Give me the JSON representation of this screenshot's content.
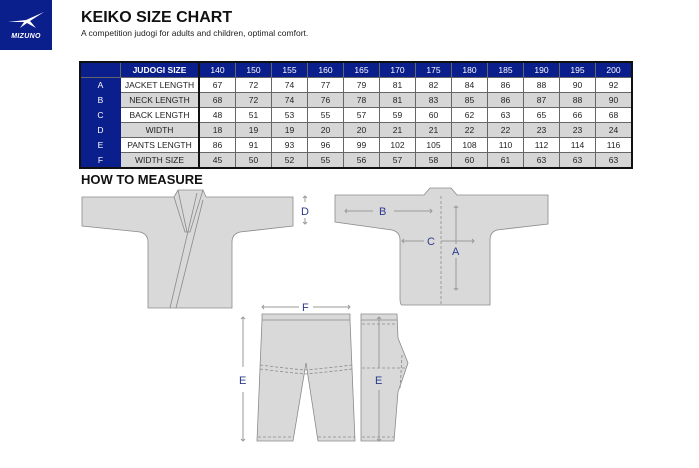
{
  "brand": {
    "logo_text": "MIZUNO",
    "color": "#0a1e8c"
  },
  "header": {
    "title": "KEIKO SIZE CHART",
    "subtitle": "A competition judogi for adults and children, optimal comfort."
  },
  "table": {
    "header_label": "JUDOGI SIZE",
    "sizes": [
      "140",
      "150",
      "155",
      "160",
      "165",
      "170",
      "175",
      "180",
      "185",
      "190",
      "195",
      "200"
    ],
    "rows": [
      {
        "letter": "A",
        "name": "JACKET LENGTH",
        "values": [
          "67",
          "72",
          "74",
          "77",
          "79",
          "81",
          "82",
          "84",
          "86",
          "88",
          "90",
          "92"
        ]
      },
      {
        "letter": "B",
        "name": "NECK LENGTH",
        "values": [
          "68",
          "72",
          "74",
          "76",
          "78",
          "81",
          "83",
          "85",
          "86",
          "87",
          "88",
          "90"
        ]
      },
      {
        "letter": "C",
        "name": "BACK LENGTH",
        "values": [
          "48",
          "51",
          "53",
          "55",
          "57",
          "59",
          "60",
          "62",
          "63",
          "65",
          "66",
          "68"
        ]
      },
      {
        "letter": "D",
        "name": "WIDTH",
        "values": [
          "18",
          "19",
          "19",
          "20",
          "20",
          "21",
          "21",
          "22",
          "22",
          "23",
          "23",
          "24"
        ]
      },
      {
        "letter": "E",
        "name": "PANTS LENGTH",
        "values": [
          "86",
          "91",
          "93",
          "96",
          "99",
          "102",
          "105",
          "108",
          "110",
          "112",
          "114",
          "116"
        ]
      },
      {
        "letter": "F",
        "name": "WIDTH SIZE",
        "values": [
          "45",
          "50",
          "52",
          "55",
          "56",
          "57",
          "58",
          "60",
          "61",
          "63",
          "63",
          "63"
        ]
      }
    ]
  },
  "measure": {
    "title": "HOW TO MEASURE",
    "labels": {
      "a": "A",
      "b": "B",
      "c": "C",
      "d": "D",
      "e": "E",
      "f": "F"
    },
    "label_color": "#2b3a8f"
  }
}
